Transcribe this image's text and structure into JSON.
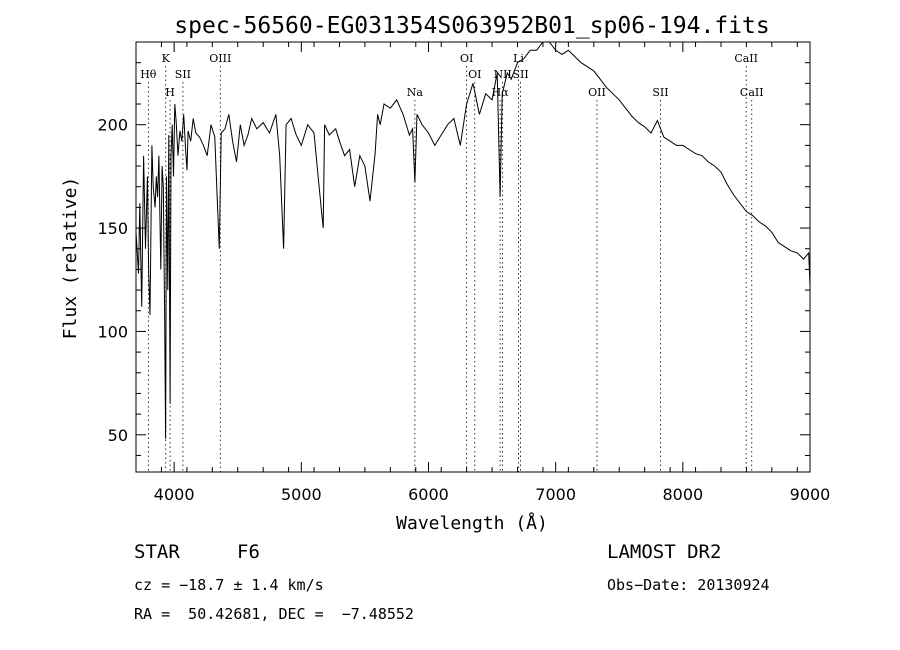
{
  "chart_data": {
    "type": "line",
    "title": "spec-56560-EG031354S063952B01_sp06-194.fits",
    "xlabel": "Wavelength (Å)",
    "ylabel": "Flux (relative)",
    "xlim": [
      3700,
      9000
    ],
    "ylim": [
      32,
      240
    ],
    "x_ticks": [
      4000,
      5000,
      6000,
      7000,
      8000,
      9000
    ],
    "y_ticks": [
      50,
      100,
      150,
      200
    ],
    "grid": false,
    "series": [
      {
        "x": [
          3700,
          3720,
          3730,
          3745,
          3760,
          3775,
          3790,
          3800,
          3810,
          3825,
          3835,
          3850,
          3860,
          3870,
          3880,
          3895,
          3905,
          3915,
          3925,
          3933,
          3940,
          3950,
          3958,
          3968,
          3975,
          3985,
          3995,
          4005,
          4015,
          4030,
          4045,
          4060,
          4075,
          4090,
          4101,
          4110,
          4130,
          4150,
          4170,
          4200,
          4230,
          4260,
          4290,
          4320,
          4340,
          4355,
          4370,
          4400,
          4430,
          4460,
          4490,
          4520,
          4550,
          4580,
          4610,
          4650,
          4700,
          4750,
          4800,
          4830,
          4861,
          4880,
          4920,
          4960,
          5000,
          5050,
          5100,
          5140,
          5172,
          5183,
          5220,
          5270,
          5300,
          5340,
          5380,
          5420,
          5460,
          5500,
          5540,
          5580,
          5600,
          5620,
          5650,
          5700,
          5750,
          5800,
          5850,
          5875,
          5893,
          5910,
          5950,
          6000,
          6050,
          6100,
          6150,
          6200,
          6250,
          6300,
          6350,
          6400,
          6450,
          6500,
          6540,
          6563,
          6580,
          6620,
          6650,
          6700,
          6750,
          6800,
          6850,
          6900,
          6950,
          7000,
          7050,
          7100,
          7150,
          7200,
          7250,
          7300,
          7350,
          7400,
          7450,
          7500,
          7550,
          7600,
          7650,
          7700,
          7750,
          7800,
          7850,
          7900,
          7950,
          8000,
          8050,
          8100,
          8150,
          8200,
          8250,
          8300,
          8350,
          8400,
          8450,
          8500,
          8550,
          8600,
          8650,
          8700,
          8750,
          8800,
          8850,
          8900,
          8950,
          8990,
          9000
        ],
        "values": [
          148,
          128,
          162,
          112,
          185,
          140,
          175,
          128,
          108,
          190,
          170,
          160,
          175,
          165,
          185,
          130,
          180,
          170,
          110,
          48,
          175,
          120,
          195,
          65,
          185,
          200,
          175,
          210,
          202,
          185,
          197,
          192,
          205,
          188,
          178,
          197,
          192,
          203,
          196,
          194,
          190,
          185,
          200,
          194,
          162,
          140,
          196,
          198,
          205,
          192,
          182,
          200,
          190,
          195,
          203,
          198,
          201,
          196,
          205,
          185,
          140,
          200,
          203,
          195,
          190,
          200,
          196,
          170,
          150,
          200,
          195,
          198,
          192,
          185,
          188,
          170,
          185,
          180,
          163,
          186,
          205,
          200,
          210,
          208,
          212,
          205,
          195,
          198,
          172,
          205,
          200,
          196,
          190,
          195,
          200,
          203,
          190,
          210,
          220,
          205,
          215,
          212,
          225,
          165,
          215,
          225,
          222,
          230,
          232,
          236,
          236,
          240,
          240,
          236,
          234,
          236,
          233,
          230,
          228,
          226,
          222,
          218,
          215,
          212,
          208,
          204,
          201,
          199,
          196,
          202,
          194,
          192,
          190,
          190,
          188,
          186,
          185,
          182,
          180,
          177,
          171,
          166,
          162,
          158,
          156,
          153,
          151,
          148,
          143,
          141,
          139,
          138,
          135,
          138,
          122
        ]
      }
    ],
    "spectral_lines": [
      {
        "label": "Hθ",
        "x": 3797,
        "row": 2
      },
      {
        "label": "K",
        "x": 3934,
        "row": 1
      },
      {
        "label": "H",
        "x": 3968,
        "row": 3
      },
      {
        "label": "SII",
        "x": 4069,
        "row": 2
      },
      {
        "label": "OIII",
        "x": 4363,
        "row": 1
      },
      {
        "label": "Na",
        "x": 5893,
        "row": 3
      },
      {
        "label": "OI",
        "x": 6300,
        "row": 1
      },
      {
        "label": "OI",
        "x": 6364,
        "row": 2
      },
      {
        "label": "NII",
        "x": 6583,
        "row": 2
      },
      {
        "label": "Hα",
        "x": 6563,
        "row": 3
      },
      {
        "label": "Li",
        "x": 6708,
        "row": 1
      },
      {
        "label": "SII",
        "x": 6724,
        "row": 2
      },
      {
        "label": "OII",
        "x": 7325,
        "row": 3
      },
      {
        "label": "SII",
        "x": 7824,
        "row": 3
      },
      {
        "label": "CaII",
        "x": 8498,
        "row": 1
      },
      {
        "label": "CaII",
        "x": 8542,
        "row": 3
      }
    ]
  },
  "info": {
    "object_class": "STAR",
    "subclass": "F6",
    "survey": "LAMOST DR2",
    "cz": "cz = −18.7 ± 1.4 km/s",
    "obs_date": "Obs−Date: 20130924",
    "coords": "RA =  50.42681, DEC =  −7.48552"
  }
}
